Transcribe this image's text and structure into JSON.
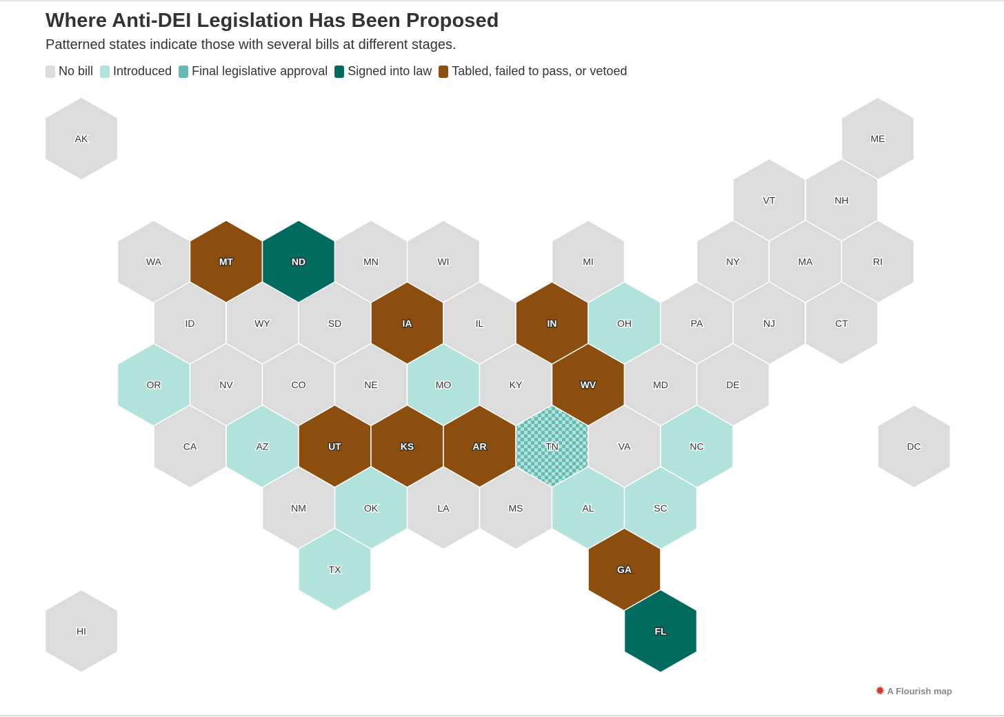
{
  "header": {
    "title": "Where Anti-DEI Legislation Has Been Proposed",
    "subtitle": "Patterned states indicate those with several bills at different stages."
  },
  "legend": [
    {
      "key": "none",
      "label": "No bill",
      "color": "#dcdcdc"
    },
    {
      "key": "introduced",
      "label": "Introduced",
      "color": "#b2e2dc"
    },
    {
      "key": "final",
      "label": "Final legislative approval",
      "color": "#66bab2"
    },
    {
      "key": "signed",
      "label": "Signed into law",
      "color": "#006b5e"
    },
    {
      "key": "tabled",
      "label": "Tabled, failed to pass, or vetoed",
      "color": "#8b4e0e"
    }
  ],
  "states": [
    {
      "abbr": "AK",
      "row": 0,
      "col": 0,
      "status": "none"
    },
    {
      "abbr": "ME",
      "row": 0,
      "col": 11,
      "status": "none"
    },
    {
      "abbr": "VT",
      "row": 1,
      "col": 9.5,
      "status": "none"
    },
    {
      "abbr": "NH",
      "row": 1,
      "col": 10.5,
      "status": "none"
    },
    {
      "abbr": "WA",
      "row": 2,
      "col": 1,
      "status": "none"
    },
    {
      "abbr": "MT",
      "row": 2,
      "col": 2,
      "status": "tabled"
    },
    {
      "abbr": "ND",
      "row": 2,
      "col": 3,
      "status": "signed"
    },
    {
      "abbr": "MN",
      "row": 2,
      "col": 4,
      "status": "none"
    },
    {
      "abbr": "WI",
      "row": 2,
      "col": 5,
      "status": "none"
    },
    {
      "abbr": "MI",
      "row": 2,
      "col": 7,
      "status": "none"
    },
    {
      "abbr": "NY",
      "row": 2,
      "col": 9,
      "status": "none"
    },
    {
      "abbr": "MA",
      "row": 2,
      "col": 10,
      "status": "none"
    },
    {
      "abbr": "RI",
      "row": 2,
      "col": 11,
      "status": "none"
    },
    {
      "abbr": "ID",
      "row": 3,
      "col": 1.5,
      "status": "none"
    },
    {
      "abbr": "WY",
      "row": 3,
      "col": 2.5,
      "status": "none"
    },
    {
      "abbr": "SD",
      "row": 3,
      "col": 3.5,
      "status": "none"
    },
    {
      "abbr": "IA",
      "row": 3,
      "col": 4.5,
      "status": "tabled"
    },
    {
      "abbr": "IL",
      "row": 3,
      "col": 5.5,
      "status": "none"
    },
    {
      "abbr": "IN",
      "row": 3,
      "col": 6.5,
      "status": "tabled"
    },
    {
      "abbr": "OH",
      "row": 3,
      "col": 7.5,
      "status": "introduced"
    },
    {
      "abbr": "PA",
      "row": 3,
      "col": 8.5,
      "status": "none"
    },
    {
      "abbr": "NJ",
      "row": 3,
      "col": 9.5,
      "status": "none"
    },
    {
      "abbr": "CT",
      "row": 3,
      "col": 10.5,
      "status": "none"
    },
    {
      "abbr": "OR",
      "row": 4,
      "col": 1,
      "status": "introduced"
    },
    {
      "abbr": "NV",
      "row": 4,
      "col": 2,
      "status": "none"
    },
    {
      "abbr": "CO",
      "row": 4,
      "col": 3,
      "status": "none"
    },
    {
      "abbr": "NE",
      "row": 4,
      "col": 4,
      "status": "none"
    },
    {
      "abbr": "MO",
      "row": 4,
      "col": 5,
      "status": "introduced"
    },
    {
      "abbr": "KY",
      "row": 4,
      "col": 6,
      "status": "none"
    },
    {
      "abbr": "WV",
      "row": 4,
      "col": 7,
      "status": "tabled"
    },
    {
      "abbr": "MD",
      "row": 4,
      "col": 8,
      "status": "none"
    },
    {
      "abbr": "DE",
      "row": 4,
      "col": 9,
      "status": "none"
    },
    {
      "abbr": "CA",
      "row": 5,
      "col": 1.5,
      "status": "none"
    },
    {
      "abbr": "AZ",
      "row": 5,
      "col": 2.5,
      "status": "introduced"
    },
    {
      "abbr": "UT",
      "row": 5,
      "col": 3.5,
      "status": "tabled"
    },
    {
      "abbr": "KS",
      "row": 5,
      "col": 4.5,
      "status": "tabled"
    },
    {
      "abbr": "AR",
      "row": 5,
      "col": 5.5,
      "status": "tabled"
    },
    {
      "abbr": "TN",
      "row": 5,
      "col": 6.5,
      "status": "patterned"
    },
    {
      "abbr": "VA",
      "row": 5,
      "col": 7.5,
      "status": "none"
    },
    {
      "abbr": "NC",
      "row": 5,
      "col": 8.5,
      "status": "introduced"
    },
    {
      "abbr": "DC",
      "row": 5,
      "col": 11.5,
      "status": "none"
    },
    {
      "abbr": "NM",
      "row": 6,
      "col": 3,
      "status": "none"
    },
    {
      "abbr": "OK",
      "row": 6,
      "col": 4,
      "status": "introduced"
    },
    {
      "abbr": "LA",
      "row": 6,
      "col": 5,
      "status": "none"
    },
    {
      "abbr": "MS",
      "row": 6,
      "col": 6,
      "status": "none"
    },
    {
      "abbr": "AL",
      "row": 6,
      "col": 7,
      "status": "introduced"
    },
    {
      "abbr": "SC",
      "row": 6,
      "col": 8,
      "status": "introduced"
    },
    {
      "abbr": "TX",
      "row": 7,
      "col": 3.5,
      "status": "introduced"
    },
    {
      "abbr": "GA",
      "row": 7,
      "col": 7.5,
      "status": "tabled"
    },
    {
      "abbr": "HI",
      "row": 8,
      "col": 0,
      "status": "none"
    },
    {
      "abbr": "FL",
      "row": 8,
      "col": 8,
      "status": "signed"
    }
  ],
  "credit": {
    "icon": "flourish-logo-icon",
    "label": "A Flourish map"
  }
}
